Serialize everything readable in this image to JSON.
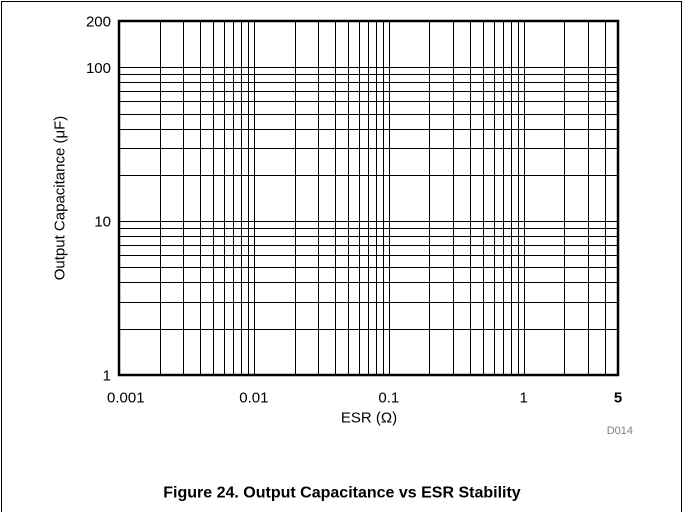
{
  "chart_data": {
    "type": "line",
    "title": "Figure 24. Output Capacitance vs ESR Stability",
    "xlabel": "ESR (Ω)",
    "ylabel": "Output Capacitance (μF)",
    "xscale": "log",
    "yscale": "log",
    "xlim": [
      0.001,
      5
    ],
    "ylim": [
      1,
      200
    ],
    "x_ticks": [
      {
        "value": 0.001,
        "label": "0.001"
      },
      {
        "value": 0.01,
        "label": "0.01"
      },
      {
        "value": 0.1,
        "label": "0.1"
      },
      {
        "value": 1,
        "label": "1"
      },
      {
        "value": 5,
        "label": "5"
      }
    ],
    "y_ticks": [
      {
        "value": 1,
        "label": "1"
      },
      {
        "value": 10,
        "label": "10"
      },
      {
        "value": 100,
        "label": "100"
      },
      {
        "value": 200,
        "label": "200"
      }
    ],
    "grid": true,
    "grid_minor": true,
    "series": [],
    "figure_id": "D014"
  },
  "colors": {
    "grid": "#000000",
    "border": "#000000",
    "text": "#000000",
    "figure_id": "#7f7f7f"
  }
}
